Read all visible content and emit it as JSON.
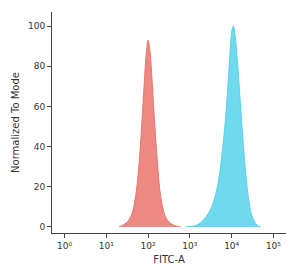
{
  "chart_data": {
    "type": "area",
    "x_label": "FITC-A",
    "y_label": "Normalized To Mode",
    "log": "x",
    "grid": false,
    "xlim": [
      0.5,
      200000
    ],
    "xticks": [
      {
        "value": 1,
        "label": "10⁰"
      },
      {
        "value": 10,
        "label": "10¹"
      },
      {
        "value": 100,
        "label": "10²"
      },
      {
        "value": 1000,
        "label": "10³"
      },
      {
        "value": 10000,
        "label": "10⁴"
      },
      {
        "value": 100000,
        "label": "10⁵"
      }
    ],
    "ylim": [
      -3,
      107
    ],
    "yticks": [
      0,
      20,
      40,
      60,
      80,
      100
    ],
    "series": [
      {
        "color": "#e8746c",
        "x": [
          20,
          30,
          40,
          50,
          60,
          70,
          80,
          90,
          100,
          110,
          120,
          140,
          170,
          200,
          250,
          300,
          400,
          600
        ],
        "values": [
          0,
          2,
          6,
          15,
          30,
          50,
          70,
          86,
          93,
          88,
          78,
          55,
          30,
          15,
          6,
          3,
          1,
          0
        ]
      },
      {
        "color": "#56d2ea",
        "x": [
          800,
          1500,
          2000,
          3000,
          4000,
          5000,
          6000,
          7000,
          8000,
          9000,
          10000,
          11000,
          12000,
          14000,
          17000,
          20000,
          25000,
          30000,
          40000,
          50000
        ],
        "values": [
          0,
          1,
          3,
          8,
          15,
          25,
          38,
          52,
          68,
          84,
          97,
          100,
          96,
          80,
          55,
          35,
          15,
          6,
          1,
          0
        ]
      }
    ]
  }
}
